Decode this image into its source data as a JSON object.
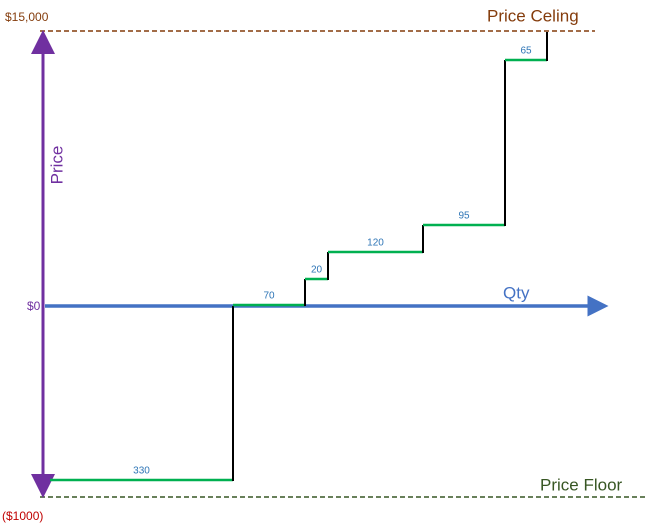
{
  "top_price": "$15,000",
  "ceiling_label": "Price Celing",
  "y_axis_label": "Price",
  "zero_price": "$0",
  "x_axis_label": "Qty",
  "floor_label": "Price Floor",
  "bottom_price": "($1000)",
  "steps": [
    {
      "label": 330
    },
    {
      "label": 70
    },
    {
      "label": 20
    },
    {
      "label": 120
    },
    {
      "label": 95
    },
    {
      "label": 65
    }
  ]
}
